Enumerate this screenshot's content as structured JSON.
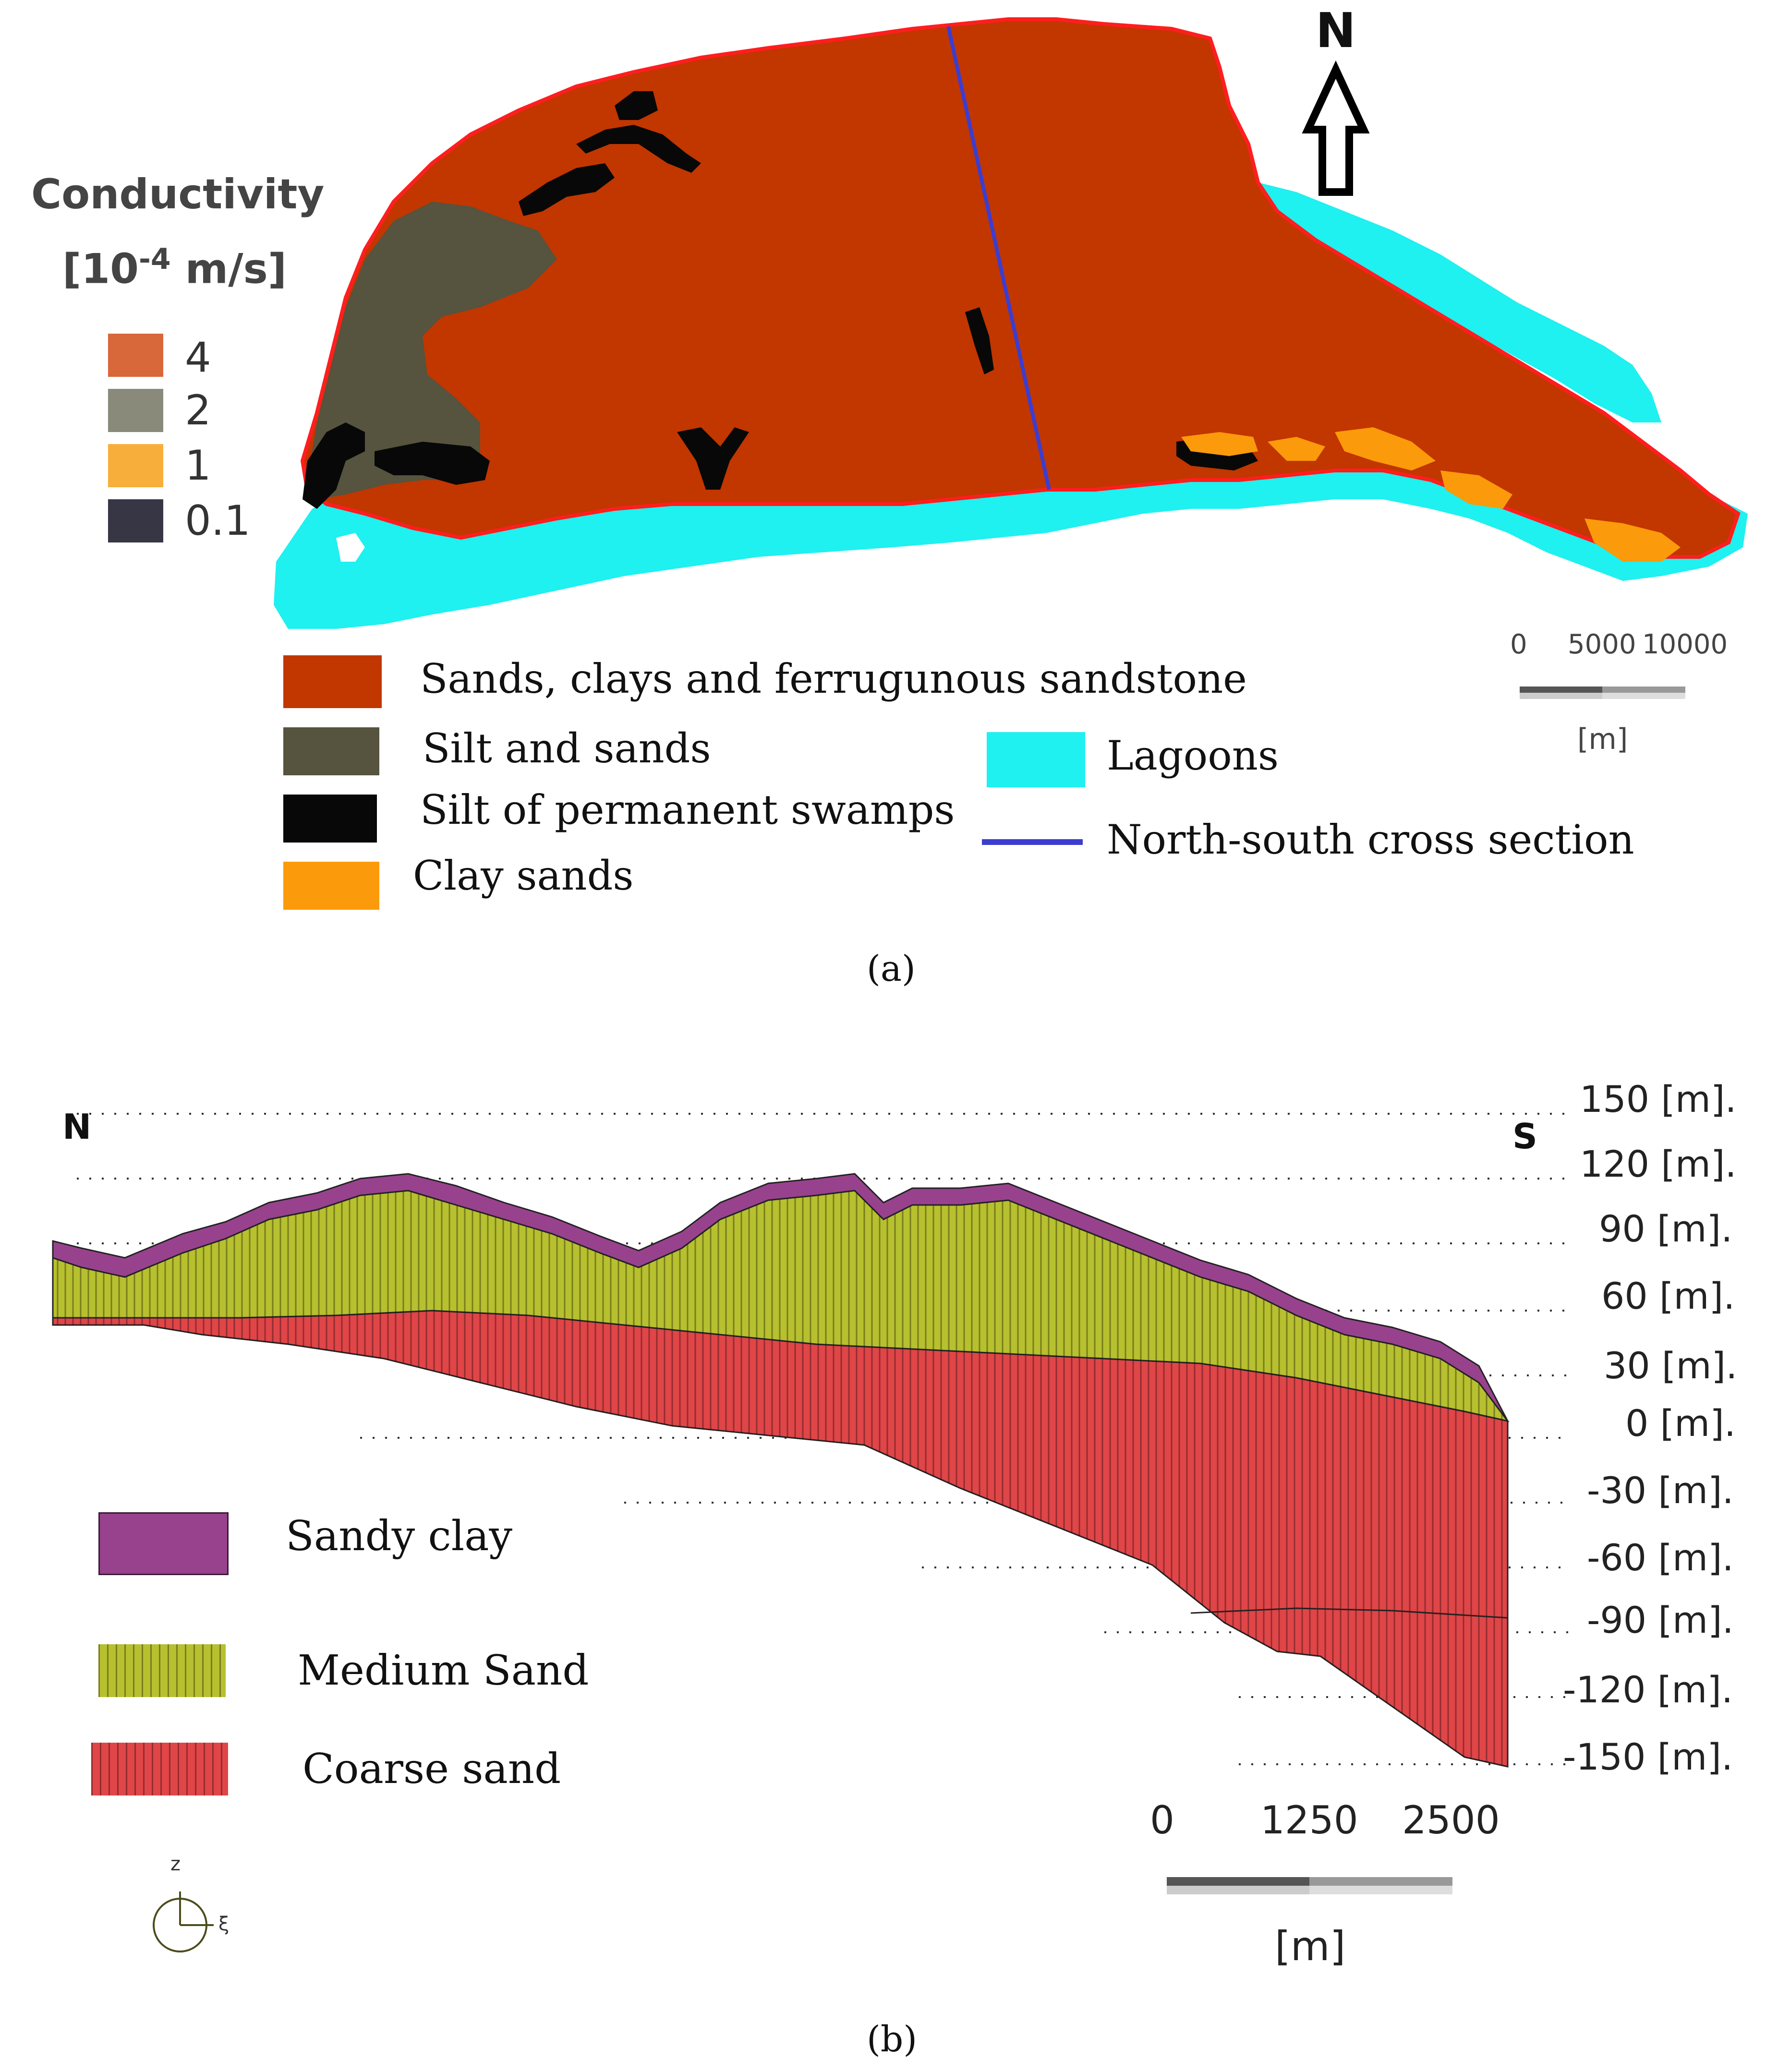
{
  "panel_a": {
    "caption": "(a)",
    "north_label": "N",
    "conductivity_legend": {
      "title_line1": "Conductivity",
      "title_line2_pre": "[10",
      "title_line2_exp": "-4",
      "title_line2_post": " m/s]",
      "items": [
        {
          "value": "4",
          "color": "#d8673a"
        },
        {
          "value": "2",
          "color": "#8a8a7a"
        },
        {
          "value": "1",
          "color": "#f8ae3a"
        },
        {
          "value": "0.1",
          "color": "#363645"
        }
      ]
    },
    "geology_legend": [
      {
        "label": "Sands, clays and ferrugunous sandstone",
        "color": "#c23600"
      },
      {
        "label": "Silt and sands",
        "color": "#56533e"
      },
      {
        "label": "Silt of permanent swamps",
        "color": "#080808"
      },
      {
        "label": "Clay sands",
        "color": "#fb9a0a"
      },
      {
        "label": "Lagoons",
        "color": "#1ff0f0"
      },
      {
        "label": "North-south cross section",
        "color": "#3b3dd0"
      }
    ],
    "scale_bar": {
      "ticks": [
        "0",
        "5000",
        "10000"
      ],
      "unit": "[m]"
    }
  },
  "panel_b": {
    "caption": "(b)",
    "north_label": "N",
    "south_label": "S",
    "elevation_labels": [
      "150 [m].",
      "120 [m].",
      "90 [m].",
      "60 [m].",
      "30 [m].",
      "0 [m].",
      "-30 [m].",
      "-60 [m].",
      "-90 [m].",
      "-120 [m].",
      "-150 [m]."
    ],
    "layers_legend": [
      {
        "label": "Sandy clay",
        "color": "#98428e"
      },
      {
        "label": "Medium Sand",
        "color": "#b7c02e"
      },
      {
        "label": "Coarse sand",
        "color": "#e04548"
      }
    ],
    "scale_bar": {
      "ticks": [
        "0",
        "1250",
        "2500"
      ],
      "unit": "[m]"
    },
    "axis_labels": {
      "z": "z",
      "xi": "ξ"
    }
  }
}
